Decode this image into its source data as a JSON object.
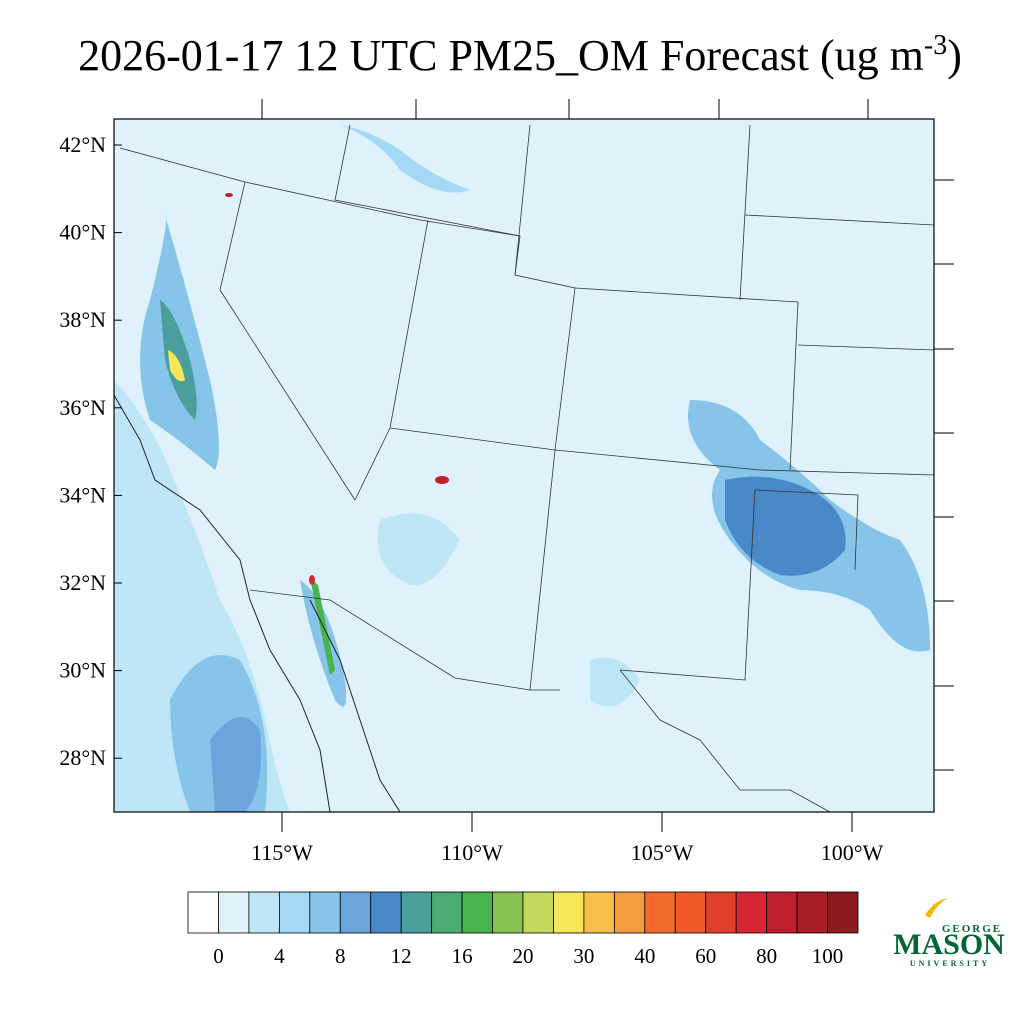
{
  "header": {
    "title": "2026-01-17 12 UTC PM25_OM Forecast (ug m",
    "title_superscript": "-3",
    "title_end": ")"
  },
  "map": {
    "lat_labels": [
      "42°N",
      "40°N",
      "38°N",
      "36°N",
      "34°N",
      "32°N",
      "30°N",
      "28°N"
    ],
    "lon_labels": [
      "115°W",
      "110°W",
      "105°W",
      "100°W"
    ],
    "background": "#dff2fb"
  },
  "colorbar": {
    "colors": [
      "#ffffff",
      "#dff2fb",
      "#bfe6f7",
      "#a3d9f4",
      "#87c4ea",
      "#6aa6dc",
      "#4a89c9",
      "#4a9e9c",
      "#4aab73",
      "#48b54c",
      "#86c24f",
      "#c4d85a",
      "#f7e65a",
      "#f8c04b",
      "#f69c3e",
      "#f26b2d",
      "#ef5a2a",
      "#e0402b",
      "#d62533",
      "#bf1e2d",
      "#a71d26",
      "#8c1a1e"
    ],
    "labels": [
      0,
      4,
      8,
      12,
      16,
      20,
      30,
      40,
      60,
      80,
      100
    ]
  },
  "logo": {
    "top": "GEORGE",
    "main": "MASON",
    "bottom": "UNIVERSITY"
  }
}
